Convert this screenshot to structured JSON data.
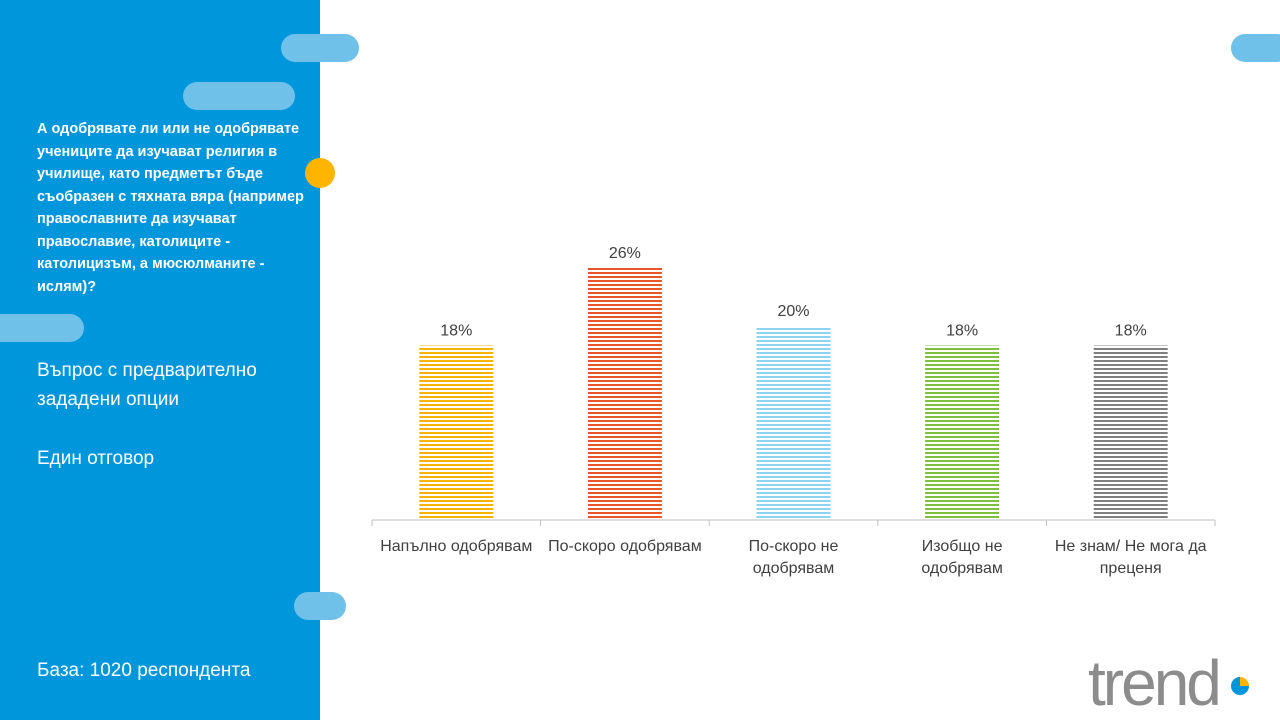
{
  "sidebar": {
    "question": "А одобрявате ли или не одобрявате учениците да изучават религия в училище, като предметът бъде съобразен с тяхната вяра (например православните да изучават православие, католиците - католицизъм, а мюсюлманите - ислям)?",
    "question_type": "Въпрос с предварително зададени опции",
    "answer_type": "Един отговор",
    "base": "База:  1020 респондента"
  },
  "logo": {
    "text": "trend"
  },
  "colors": {
    "sidebar_bg": "#0096dc",
    "pill": "#70c1ea",
    "dot": "#ffb400",
    "series": [
      "#f5b400",
      "#e8562a",
      "#8dd3f2",
      "#7cc03c",
      "#7f7f7f"
    ]
  },
  "chart_data": {
    "type": "bar",
    "categories": [
      "Напълно одобрявам",
      "По-скоро одобрявам",
      "По-скоро не одобрявам",
      "Изобщо не одобрявам",
      "Не знам/ Не мога да преценя"
    ],
    "category_lines": [
      [
        "Напълно одобрявам"
      ],
      [
        "По-скоро одобрявам"
      ],
      [
        "По-скоро не",
        "одобрявам"
      ],
      [
        "Изобщо не",
        "одобрявам"
      ],
      [
        "Не знам/ Не мога да",
        "преценя"
      ]
    ],
    "values": [
      18,
      26,
      20,
      18,
      18
    ],
    "value_labels": [
      "18%",
      "26%",
      "20%",
      "18%",
      "18%"
    ],
    "unit": "%",
    "title": "",
    "xlabel": "",
    "ylabel": "",
    "ylim": [
      0,
      26
    ],
    "grid": false,
    "legend": "none",
    "pattern": "horizontal-stripes"
  }
}
